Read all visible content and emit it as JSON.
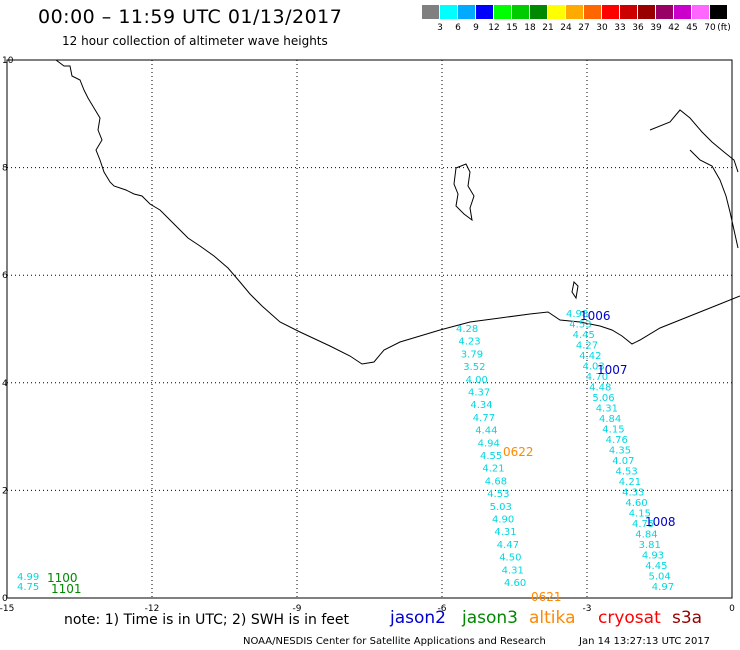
{
  "header": {
    "title": "00:00 – 11:59 UTC 01/13/2017",
    "subtitle": "12 hour collection of altimeter wave heights"
  },
  "color_scale": {
    "unit": "(ft)",
    "swatches": [
      "#808080",
      "#00ffff",
      "#00aaff",
      "#0000ff",
      "#00ff00",
      "#00cc00",
      "#008800",
      "#ffff00",
      "#ffaa00",
      "#ff6600",
      "#ff0000",
      "#cc0000",
      "#990000",
      "#990066",
      "#cc00cc",
      "#ff66ff",
      "#000000"
    ],
    "labels": [
      "3",
      "6",
      "9",
      "12",
      "15",
      "18",
      "21",
      "24",
      "27",
      "30",
      "33",
      "36",
      "39",
      "42",
      "45",
      "70"
    ]
  },
  "axes": {
    "x_ticks": [
      "-15",
      "-12",
      "-9",
      "-6",
      "-3",
      "0"
    ],
    "y_ticks": [
      "10",
      "8",
      "6",
      "4",
      "2",
      "0"
    ],
    "xlim": [
      -15,
      0
    ],
    "ylim": [
      0,
      10
    ],
    "grid": true
  },
  "passes": [
    {
      "id": "1006",
      "color": "#0000cc"
    },
    {
      "id": "1007",
      "color": "#0000cc"
    },
    {
      "id": "1008",
      "color": "#0000cc"
    },
    {
      "id": "0622",
      "color": "#ff8800"
    },
    {
      "id": "0621",
      "color": "#ff8800"
    },
    {
      "id": "1100",
      "color": "#008800"
    },
    {
      "id": "1101",
      "color": "#008800"
    }
  ],
  "track_values": {
    "track_a": [
      "4.28",
      "4.23",
      "3.79",
      "3.52",
      "4.00",
      "4.37",
      "4.34",
      "4.77",
      "4.44",
      "4.94",
      "4.55",
      "4.21",
      "4.68",
      "4.53",
      "5.03",
      "4.90",
      "4.31",
      "4.47",
      "4.50",
      "4.31",
      "4.60"
    ],
    "track_b": [
      "4.98",
      "4.53",
      "4.45",
      "4.27",
      "4.42",
      "4.03",
      "4.70",
      "4.48",
      "5.06",
      "4.31",
      "4.84",
      "4.15",
      "4.76",
      "4.35",
      "4.07",
      "4.53",
      "4.21",
      "4.33",
      "4.60",
      "4.15",
      "4.75",
      "4.84",
      "3.81",
      "4.93",
      "4.45",
      "5.04",
      "4.97"
    ],
    "track_c": [
      "4.99",
      "4.75"
    ]
  },
  "footer": {
    "note": "note:  1) Time is in UTC;  2) SWH is in feet",
    "satellites": [
      {
        "name": "jason2",
        "color": "#0000cc"
      },
      {
        "name": "jason3",
        "color": "#008800"
      },
      {
        "name": "altika",
        "color": "#ff8800"
      },
      {
        "name": "cryosat",
        "color": "#ff0000"
      },
      {
        "name": "s3a",
        "color": "#990000"
      }
    ],
    "credit": "NOAA/NESDIS Center for Satellite Applications and Research",
    "timestamp": "Jan 14 13:27:13 UTC 2017"
  }
}
